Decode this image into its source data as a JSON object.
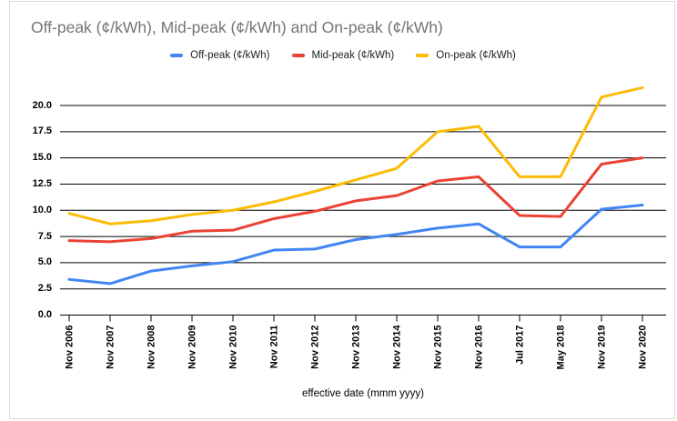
{
  "chart_data": {
    "type": "line",
    "title": "Off-peak (¢/kWh), Mid-peak (¢/kWh) and On-peak (¢/kWh)",
    "xlabel": "effective date (mmm yyyy)",
    "ylabel": "",
    "categories": [
      "Nov 2006",
      "Nov 2007",
      "Nov 2008",
      "Nov 2009",
      "Nov 2010",
      "Nov 2011",
      "Nov 2012",
      "Nov 2013",
      "Nov 2014",
      "Nov 2015",
      "Nov 2016",
      "Jul 2017",
      "May 2018",
      "Nov 2019",
      "Nov 2020"
    ],
    "series": [
      {
        "name": "Off-peak (¢/kWh)",
        "color": "#4285F4",
        "values": [
          3.4,
          3.0,
          4.2,
          4.7,
          5.1,
          6.2,
          6.3,
          7.2,
          7.7,
          8.3,
          8.7,
          6.5,
          6.5,
          10.1,
          10.5
        ]
      },
      {
        "name": "Mid-peak (¢/kWh)",
        "color": "#EA4335",
        "values": [
          7.1,
          7.0,
          7.3,
          8.0,
          8.1,
          9.2,
          9.9,
          10.9,
          11.4,
          12.8,
          13.2,
          9.5,
          9.4,
          14.4,
          15.0
        ]
      },
      {
        "name": "On-peak (¢/kWh)",
        "color": "#FBBC04",
        "values": [
          9.7,
          8.7,
          9.0,
          9.6,
          10.0,
          10.8,
          11.8,
          12.9,
          14.0,
          17.5,
          18.0,
          13.2,
          13.2,
          20.8,
          21.7
        ]
      }
    ],
    "ylim": [
      0,
      21.75
    ],
    "yticks": [
      0,
      2.5,
      5,
      7.5,
      10,
      12.5,
      15,
      17.5,
      20
    ],
    "ytick_format_decimals": 1,
    "grid": true,
    "gridline_color": "#000000",
    "legend_position": "top",
    "units": "¢/kWh"
  }
}
